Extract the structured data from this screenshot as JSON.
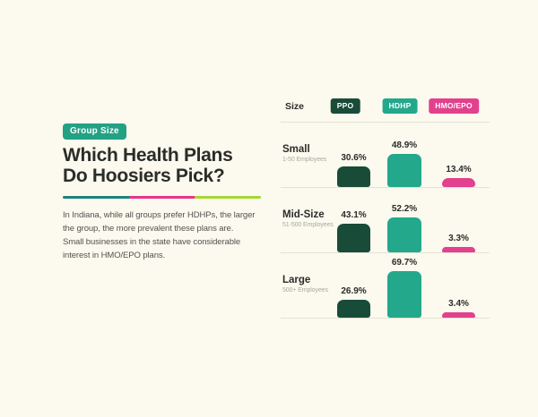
{
  "colors": {
    "background": "#FCF9EF",
    "ink": "#2A2D28",
    "body_text": "#53534C",
    "muted": "#ABA89C",
    "line": "#E5E1D4",
    "badge_teal": "#23A183",
    "divider_segments": [
      "#20807C",
      "#E8348B",
      "#A6D734"
    ]
  },
  "intro": {
    "badge": "Group Size",
    "title_line1": "Which Health Plans",
    "title_line2": "Do Hoosiers Pick?",
    "paragraph_lines": [
      "In Indiana, while all groups prefer HDHPs, the larger",
      "the group, the more prevalent these plans are.",
      "Small businesses in the state have considerable",
      "interest in HMO/EPO plans."
    ]
  },
  "chart_data": {
    "type": "bar",
    "title": "Which Health Plans Do Hoosiers Pick?",
    "size_label": "Size",
    "legend_position": "top",
    "grid": false,
    "unit": "%",
    "ylim": [
      0,
      100
    ],
    "categories": [
      "Small",
      "Mid-Size",
      "Large"
    ],
    "category_sublabels": [
      "1-50 Employees",
      "51-500 Employees",
      "500+ Employees"
    ],
    "series": [
      {
        "name": "PPO",
        "color": "#184C39",
        "values": [
          30.6,
          43.1,
          26.9
        ],
        "labels": [
          "30.6%",
          "43.1%",
          "26.9%"
        ]
      },
      {
        "name": "HDHP",
        "color": "#23A88B",
        "values": [
          48.9,
          52.2,
          69.7
        ],
        "labels": [
          "48.9%",
          "52.2%",
          "69.7%"
        ]
      },
      {
        "name": "HMO/EPO",
        "color": "#E2418D",
        "values": [
          13.4,
          3.3,
          3.4
        ],
        "labels": [
          "13.4%",
          "3.3%",
          "3.4%"
        ]
      }
    ]
  }
}
